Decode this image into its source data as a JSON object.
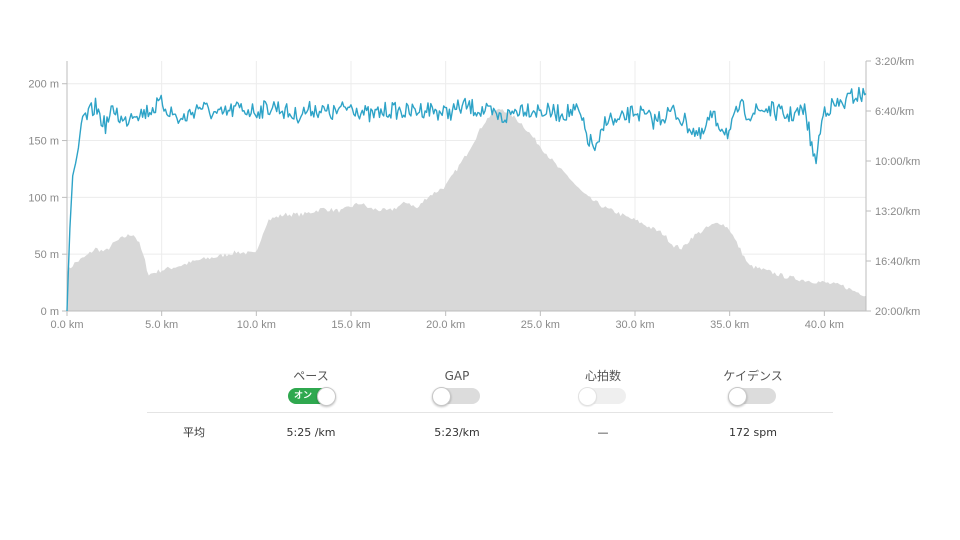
{
  "chart_data": {
    "type": "line",
    "x_axis": {
      "range_km": [
        0,
        42.2
      ],
      "ticks": [
        0,
        5,
        10,
        15,
        20,
        25,
        30,
        35,
        40
      ],
      "tick_labels": [
        "0.0 km",
        "5.0 km",
        "10.0 km",
        "15.0 km",
        "20.0 km",
        "25.0 km",
        "30.0 km",
        "35.0 km",
        "40.0 km"
      ]
    },
    "y_left": {
      "range_m": [
        0,
        220
      ],
      "ticks": [
        0,
        50,
        100,
        150,
        200
      ],
      "tick_labels": [
        "0 m",
        "50 m",
        "100 m",
        "150 m",
        "200 m"
      ]
    },
    "y_right": {
      "range_sec_per_km": [
        200,
        1200
      ],
      "ticks": [
        200,
        400,
        600,
        800,
        1000,
        1200
      ],
      "tick_labels": [
        "3:20/km",
        "6:40/km",
        "10:00/km",
        "13:20/km",
        "16:40/km",
        "20:00/km"
      ],
      "inverted": true
    },
    "grid": true,
    "series": [
      {
        "kind": "elevation-area",
        "axis": "left",
        "color": "#d8d8d8",
        "points": [
          [
            0,
            35
          ],
          [
            0.4,
            42
          ],
          [
            1,
            48
          ],
          [
            1.5,
            55
          ],
          [
            2,
            52
          ],
          [
            2.5,
            60
          ],
          [
            3,
            65
          ],
          [
            3.5,
            68
          ],
          [
            3.8,
            60
          ],
          [
            4.1,
            45
          ],
          [
            4.3,
            32
          ],
          [
            5,
            36
          ],
          [
            6,
            40
          ],
          [
            7,
            45
          ],
          [
            8,
            48
          ],
          [
            9,
            52
          ],
          [
            10,
            50
          ],
          [
            10.2,
            62
          ],
          [
            10.6,
            80
          ],
          [
            11.5,
            85
          ],
          [
            12.5,
            85
          ],
          [
            13.5,
            90
          ],
          [
            14.5,
            88
          ],
          [
            15,
            92
          ],
          [
            15.5,
            95
          ],
          [
            16,
            90
          ],
          [
            17,
            88
          ],
          [
            17.5,
            92
          ],
          [
            18,
            96
          ],
          [
            18.5,
            90
          ],
          [
            19,
            100
          ],
          [
            20,
            110
          ],
          [
            21,
            135
          ],
          [
            21.5,
            150
          ],
          [
            22,
            165
          ],
          [
            22.5,
            175
          ],
          [
            23,
            178
          ],
          [
            23.5,
            172
          ],
          [
            24,
            165
          ],
          [
            24.5,
            155
          ],
          [
            25,
            145
          ],
          [
            25.5,
            135
          ],
          [
            26,
            125
          ],
          [
            26.5,
            118
          ],
          [
            27,
            108
          ],
          [
            27.5,
            100
          ],
          [
            28,
            95
          ],
          [
            28.5,
            90
          ],
          [
            29,
            87
          ],
          [
            29.5,
            83
          ],
          [
            30,
            80
          ],
          [
            30.5,
            76
          ],
          [
            31,
            72
          ],
          [
            31.5,
            68
          ],
          [
            32,
            58
          ],
          [
            32.5,
            55
          ],
          [
            33,
            65
          ],
          [
            33.5,
            70
          ],
          [
            34,
            75
          ],
          [
            34.5,
            78
          ],
          [
            35,
            72
          ],
          [
            35.3,
            62
          ],
          [
            35.7,
            50
          ],
          [
            36,
            40
          ],
          [
            37,
            35
          ],
          [
            38,
            30
          ],
          [
            39,
            27
          ],
          [
            40,
            25
          ],
          [
            41,
            22
          ],
          [
            41.5,
            18
          ],
          [
            42.2,
            14
          ]
        ]
      },
      {
        "kind": "pace-line",
        "axis": "right",
        "color": "#2ea3c7",
        "points": [
          [
            0,
            1200
          ],
          [
            0.15,
            870
          ],
          [
            0.3,
            660
          ],
          [
            0.45,
            610
          ],
          [
            0.6,
            550
          ],
          [
            0.8,
            420
          ],
          [
            1,
            430
          ],
          [
            1.5,
            380
          ],
          [
            2,
            460
          ],
          [
            2.5,
            390
          ],
          [
            3,
            450
          ],
          [
            3.5,
            400
          ],
          [
            4,
            410
          ],
          [
            5,
            370
          ],
          [
            6,
            440
          ],
          [
            7,
            380
          ],
          [
            8,
            420
          ],
          [
            9,
            390
          ],
          [
            10,
            400
          ],
          [
            11,
            380
          ],
          [
            12,
            420
          ],
          [
            13,
            390
          ],
          [
            14,
            410
          ],
          [
            15,
            380
          ],
          [
            16,
            420
          ],
          [
            17,
            395
          ],
          [
            18,
            405
          ],
          [
            19,
            390
          ],
          [
            20,
            410
          ],
          [
            21,
            380
          ],
          [
            22,
            400
          ],
          [
            23,
            430
          ],
          [
            24,
            385
          ],
          [
            25,
            400
          ],
          [
            26,
            410
          ],
          [
            27,
            400
          ],
          [
            27.5,
            510
          ],
          [
            28,
            560
          ],
          [
            28.5,
            420
          ],
          [
            29,
            450
          ],
          [
            30,
            400
          ],
          [
            31,
            440
          ],
          [
            32,
            400
          ],
          [
            33,
            470
          ],
          [
            33.5,
            510
          ],
          [
            34,
            420
          ],
          [
            35,
            490
          ],
          [
            35.5,
            380
          ],
          [
            36,
            410
          ],
          [
            37,
            390
          ],
          [
            38,
            420
          ],
          [
            39,
            400
          ],
          [
            39.5,
            610
          ],
          [
            40,
            390
          ],
          [
            41,
            370
          ],
          [
            41.5,
            340
          ],
          [
            42,
            335
          ],
          [
            42.2,
            340
          ]
        ]
      }
    ]
  },
  "toggles": [
    {
      "label": "ペース",
      "state": "on",
      "on_text": "オン"
    },
    {
      "label": "GAP",
      "state": "off"
    },
    {
      "label": "心拍数",
      "state": "disabled"
    },
    {
      "label": "ケイデンス",
      "state": "off"
    }
  ],
  "summary": {
    "row_label": "平均",
    "values": [
      "5:25 /km",
      "5:23/km",
      "—",
      "172 spm"
    ]
  },
  "colors": {
    "pace_line": "#2ea3c7",
    "elevation_fill": "#d8d8d8",
    "toggle_on": "#2fa84f"
  }
}
